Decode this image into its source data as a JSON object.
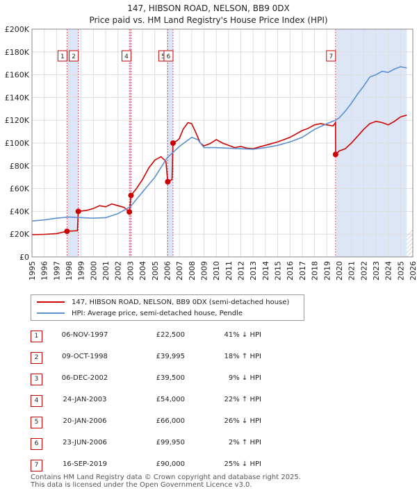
{
  "chart_data": {
    "type": "line",
    "title": "147, HIBSON ROAD, NELSON, BB9 0DX",
    "subtitle": "Price paid vs. HM Land Registry's House Price Index (HPI)",
    "xlim": [
      1995,
      2026
    ],
    "ylim": [
      0,
      200000
    ],
    "x_ticks": [
      "1995",
      "1996",
      "1997",
      "1998",
      "1999",
      "2000",
      "2001",
      "2002",
      "2003",
      "2004",
      "2005",
      "2006",
      "2007",
      "2008",
      "2009",
      "2010",
      "2011",
      "2012",
      "2013",
      "2014",
      "2015",
      "2016",
      "2017",
      "2018",
      "2019",
      "2020",
      "2021",
      "2022",
      "2023",
      "2024",
      "2025",
      "2026"
    ],
    "y_ticks": [
      "£0",
      "£20K",
      "£40K",
      "£60K",
      "£80K",
      "£100K",
      "£120K",
      "£140K",
      "£160K",
      "£180K",
      "£200K"
    ],
    "series": [
      {
        "name": "147, HIBSON ROAD, NELSON, BB9 0DX (semi-detached house)",
        "color": "#cc0000",
        "points": [
          [
            1995,
            19500
          ],
          [
            1996,
            19800
          ],
          [
            1997,
            20500
          ],
          [
            1997.85,
            22500
          ],
          [
            1998.7,
            23000
          ],
          [
            1998.77,
            39995
          ],
          [
            1999.5,
            41000
          ],
          [
            2000,
            42500
          ],
          [
            2000.5,
            45000
          ],
          [
            2001,
            44000
          ],
          [
            2001.5,
            46500
          ],
          [
            2002,
            45000
          ],
          [
            2002.5,
            43500
          ],
          [
            2002.93,
            39500
          ],
          [
            2003.06,
            54000
          ],
          [
            2003.5,
            60000
          ],
          [
            2004,
            68000
          ],
          [
            2004.5,
            78000
          ],
          [
            2005,
            85000
          ],
          [
            2005.5,
            88000
          ],
          [
            2005.9,
            84000
          ],
          [
            2006.05,
            66000
          ],
          [
            2006.4,
            68000
          ],
          [
            2006.48,
            99950
          ],
          [
            2006.8,
            102000
          ],
          [
            2007,
            104000
          ],
          [
            2007.3,
            112000
          ],
          [
            2007.7,
            118000
          ],
          [
            2008,
            117000
          ],
          [
            2008.3,
            110000
          ],
          [
            2008.7,
            100000
          ],
          [
            2009,
            97500
          ],
          [
            2009.5,
            99500
          ],
          [
            2010,
            103000
          ],
          [
            2010.5,
            100000
          ],
          [
            2011,
            98000
          ],
          [
            2011.5,
            96000
          ],
          [
            2012,
            97000
          ],
          [
            2012.5,
            95500
          ],
          [
            2013,
            95000
          ],
          [
            2013.5,
            96500
          ],
          [
            2014,
            98000
          ],
          [
            2014.5,
            99500
          ],
          [
            2015,
            101000
          ],
          [
            2015.5,
            103000
          ],
          [
            2016,
            105000
          ],
          [
            2016.5,
            108000
          ],
          [
            2017,
            111000
          ],
          [
            2017.5,
            113000
          ],
          [
            2018,
            116000
          ],
          [
            2018.5,
            117000
          ],
          [
            2019,
            116000
          ],
          [
            2019.5,
            115000
          ],
          [
            2019.71,
            118000
          ],
          [
            2019.72,
            90000
          ],
          [
            2020,
            93000
          ],
          [
            2020.5,
            95000
          ],
          [
            2021,
            100000
          ],
          [
            2021.5,
            106000
          ],
          [
            2022,
            112000
          ],
          [
            2022.5,
            117000
          ],
          [
            2023,
            119000
          ],
          [
            2023.5,
            118000
          ],
          [
            2024,
            116000
          ],
          [
            2024.5,
            119000
          ],
          [
            2025,
            123000
          ],
          [
            2025.5,
            124500
          ]
        ]
      },
      {
        "name": "HPI: Average price, semi-detached house, Pendle",
        "color": "#5b8fd0",
        "points": [
          [
            1995,
            31500
          ],
          [
            1996,
            32500
          ],
          [
            1997,
            34000
          ],
          [
            1998,
            35000
          ],
          [
            1999,
            34500
          ],
          [
            2000,
            34000
          ],
          [
            2001,
            34500
          ],
          [
            2002,
            38000
          ],
          [
            2003,
            44000
          ],
          [
            2004,
            57000
          ],
          [
            2005,
            70000
          ],
          [
            2006,
            87000
          ],
          [
            2007,
            97000
          ],
          [
            2008,
            105000
          ],
          [
            2008.5,
            103000
          ],
          [
            2009,
            96000
          ],
          [
            2010,
            96000
          ],
          [
            2011,
            95500
          ],
          [
            2012,
            95000
          ],
          [
            2013,
            94500
          ],
          [
            2014,
            96000
          ],
          [
            2015,
            98000
          ],
          [
            2016,
            101000
          ],
          [
            2017,
            105000
          ],
          [
            2018,
            112000
          ],
          [
            2019,
            117000
          ],
          [
            2019.7,
            120000
          ],
          [
            2020,
            122000
          ],
          [
            2020.5,
            128000
          ],
          [
            2021,
            135000
          ],
          [
            2021.5,
            143000
          ],
          [
            2022,
            150000
          ],
          [
            2022.5,
            158000
          ],
          [
            2023,
            160000
          ],
          [
            2023.5,
            163000
          ],
          [
            2024,
            162000
          ],
          [
            2024.5,
            165000
          ],
          [
            2025,
            167000
          ],
          [
            2025.5,
            166000
          ]
        ]
      }
    ],
    "sales": [
      {
        "marker": "1",
        "date": "06-NOV-1997",
        "year": 1997.85,
        "price": 22500,
        "price_label": "£22,500",
        "hpi": "41% ↓ HPI"
      },
      {
        "marker": "2",
        "date": "09-OCT-1998",
        "year": 1998.77,
        "price": 39995,
        "price_label": "£39,995",
        "hpi": "18% ↑ HPI"
      },
      {
        "marker": "3",
        "date": "06-DEC-2002",
        "year": 2002.93,
        "price": 39500,
        "price_label": "£39,500",
        "hpi": "9% ↓ HPI"
      },
      {
        "marker": "4",
        "date": "24-JAN-2003",
        "year": 2003.06,
        "price": 54000,
        "price_label": "£54,000",
        "hpi": "22% ↑ HPI"
      },
      {
        "marker": "5",
        "date": "20-JAN-2006",
        "year": 2006.05,
        "price": 66000,
        "price_label": "£66,000",
        "hpi": "26% ↓ HPI"
      },
      {
        "marker": "6",
        "date": "23-JUN-2006",
        "year": 2006.48,
        "price": 99950,
        "price_label": "£99,950",
        "hpi": "2% ↑ HPI"
      },
      {
        "marker": "7",
        "date": "16-SEP-2019",
        "year": 2019.71,
        "price": 90000,
        "price_label": "£90,000",
        "hpi": "25% ↓ HPI"
      }
    ],
    "chart_markers": [
      "1",
      "2",
      "4",
      "5",
      "6",
      "7"
    ],
    "future_shading_start": 2025.5
  },
  "legend": {
    "property_label": "147, HIBSON ROAD, NELSON, BB9 0DX (semi-detached house)",
    "hpi_label": "HPI: Average price, semi-detached house, Pendle"
  },
  "footer": {
    "line1": "Contains HM Land Registry data © Crown copyright and database right 2025.",
    "line2": "This data is licensed under the Open Government Licence v3.0."
  },
  "colors": {
    "property": "#cc0000",
    "hpi": "#5b8fd0",
    "sale_band": "#dde6f6",
    "grid": "#dddddd"
  }
}
